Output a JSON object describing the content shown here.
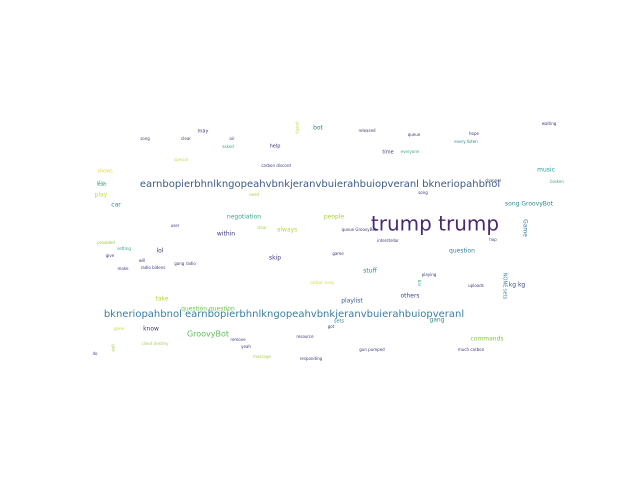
{
  "words": [
    {
      "text": "trump trump",
      "color": "#4a2b6e"
    },
    {
      "text": "earnbopierbhnlkngopeahvbnkjeranvbuierahbuiopveranl bkneriopahbnol",
      "color": "#3b5a8a"
    },
    {
      "text": "bkneriopahbnol earnbopierbhnlkngopeahvbnkjeranvbuierahbuiopveranl",
      "color": "#3a7fa0"
    },
    {
      "text": "GroovyBot",
      "color": "#5cc05a"
    },
    {
      "text": "question question",
      "color": "#6fc44a"
    },
    {
      "text": "negotiation",
      "color": "#3fa58a"
    },
    {
      "text": "always",
      "color": "#b8d83a"
    },
    {
      "text": "people",
      "color": "#a8d048"
    },
    {
      "text": "within",
      "color": "#3b3b7a"
    },
    {
      "text": "skip",
      "color": "#453b80"
    },
    {
      "text": "stuff",
      "color": "#2a8a8a"
    },
    {
      "text": "playlist",
      "color": "#3b5a8a"
    },
    {
      "text": "others",
      "color": "#3b4a8a"
    },
    {
      "text": "question",
      "color": "#3a7f9a"
    },
    {
      "text": "song GroovyBot",
      "color": "#2a8a8a"
    },
    {
      "text": "music",
      "color": "#2a9a9a"
    },
    {
      "text": "lol",
      "color": "#3b3b7a"
    },
    {
      "text": "know",
      "color": "#3b3b7a"
    },
    {
      "text": "time",
      "color": "#3b3b7a"
    },
    {
      "text": "help",
      "color": "#3b3b7a"
    },
    {
      "text": "bot",
      "color": "#2a8a8a"
    },
    {
      "text": "shows",
      "color": "#d8d84a"
    },
    {
      "text": "play",
      "color": "#c8d840"
    },
    {
      "text": "car",
      "color": "#2a8a8a"
    },
    {
      "text": "kg kg",
      "color": "#3b4a8a"
    },
    {
      "text": "sets",
      "color": "#3a7f9a"
    },
    {
      "text": "gang",
      "color": "#2a8a8a"
    },
    {
      "text": "commands",
      "color": "#8ac840"
    },
    {
      "text": "take",
      "color": "#b8d83a"
    },
    {
      "text": "Game",
      "color": "#3b7fa0"
    },
    {
      "text": "NONE sets",
      "color": "#3b7fa0"
    },
    {
      "text": "broken",
      "color": "#3fa58a"
    },
    {
      "text": "channel",
      "color": "#3b3b7a"
    },
    {
      "text": "may",
      "color": "#453b80"
    },
    {
      "text": "clear",
      "color": "#453b80"
    },
    {
      "text": "air",
      "color": "#453b80"
    },
    {
      "text": "asked",
      "color": "#3fa58a"
    },
    {
      "text": "released",
      "color": "#3b3b7a"
    },
    {
      "text": "queue",
      "color": "#3b3b7a"
    },
    {
      "text": "every listen",
      "color": "#2a8a8a"
    },
    {
      "text": "everyone",
      "color": "#3fa58a"
    },
    {
      "text": "waiting",
      "color": "#3b3b7a"
    },
    {
      "text": "hope",
      "color": "#3b3b7a"
    },
    {
      "text": "carbon discord",
      "color": "#3b3b7a"
    },
    {
      "text": "special",
      "color": "#c8d840"
    },
    {
      "text": "need",
      "color": "#a8d048"
    },
    {
      "text": "song",
      "color": "#3b3b7a"
    },
    {
      "text": "user",
      "color": "#3b3b7a"
    },
    {
      "text": "clear",
      "color": "#a8d048"
    },
    {
      "text": "queue GroovyBot",
      "color": "#3b3b7a"
    },
    {
      "text": "interstellar",
      "color": "#3b3b7a"
    },
    {
      "text": "hop",
      "color": "#3b3b7a"
    },
    {
      "text": "play",
      "color": "#3fa58a"
    },
    {
      "text": "provided",
      "color": "#8ac840"
    },
    {
      "text": "setting",
      "color": "#3fa58a"
    },
    {
      "text": "give",
      "color": "#3b3b7a"
    },
    {
      "text": "will",
      "color": "#3b3b7a"
    },
    {
      "text": "radio bidens",
      "color": "#3b3b7a"
    },
    {
      "text": "gang radio",
      "color": "#3b3b7a"
    },
    {
      "text": "make",
      "color": "#3b3b7a"
    },
    {
      "text": "game",
      "color": "#3b3b7a"
    },
    {
      "text": "playing",
      "color": "#3b3b7a"
    },
    {
      "text": "carbon easy",
      "color": "#d8d84a"
    },
    {
      "text": "uploads",
      "color": "#3b3b7a"
    },
    {
      "text": "bar",
      "color": "#3fa58a"
    },
    {
      "text": "yeah",
      "color": "#3b3b7a"
    },
    {
      "text": "resource",
      "color": "#3b3b7a"
    },
    {
      "text": "remove",
      "color": "#3b3b7a"
    },
    {
      "text": "gun pumped",
      "color": "#3b3b7a"
    },
    {
      "text": "much carbon",
      "color": "#3b3b7a"
    },
    {
      "text": "client destiny",
      "color": "#a8d048"
    },
    {
      "text": "message",
      "color": "#a8d048"
    },
    {
      "text": "responding",
      "color": "#3b3b7a"
    },
    {
      "text": "gone",
      "color": "#c8d840"
    },
    {
      "text": "do",
      "color": "#3b3b7a"
    },
    {
      "text": "got",
      "color": "#3b3b7a"
    },
    {
      "text": "pretty",
      "color": "#c8d840"
    },
    {
      "text": "start",
      "color": "#3fa58a"
    },
    {
      "text": "gee",
      "color": "#a8d048"
    },
    {
      "text": "song",
      "color": "#3b3b7a"
    }
  ]
}
